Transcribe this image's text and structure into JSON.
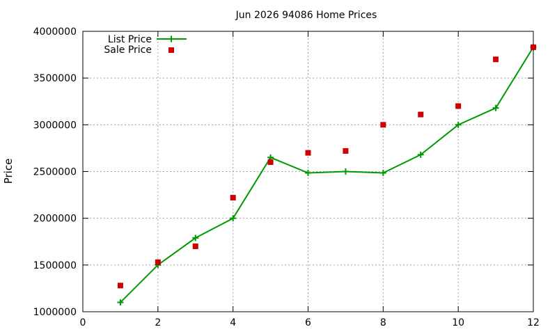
{
  "chart_data": {
    "type": "line",
    "title": "Jun 2026 94086 Home Prices",
    "xlabel": "",
    "ylabel": "Price",
    "xlim": [
      0,
      12
    ],
    "ylim": [
      1000000,
      4000000
    ],
    "xticks": [
      0,
      2,
      4,
      6,
      8,
      10,
      12
    ],
    "yticks": [
      1000000,
      1500000,
      2000000,
      2500000,
      3000000,
      3500000,
      4000000
    ],
    "grid": true,
    "legend_position": "top-left",
    "series": [
      {
        "name": "List Price",
        "style": "line-with-plus-markers",
        "color": "#009900",
        "x": [
          1,
          2,
          3,
          4,
          5,
          6,
          7,
          8,
          9,
          10,
          11,
          12
        ],
        "values": [
          1100000,
          1500000,
          1790000,
          2000000,
          2650000,
          2485000,
          2500000,
          2485000,
          2680000,
          3000000,
          3180000,
          3830000
        ]
      },
      {
        "name": "Sale Price",
        "style": "square-markers",
        "color": "#cc0000",
        "x": [
          1,
          2,
          3,
          4,
          5,
          6,
          7,
          8,
          9,
          10,
          11,
          12
        ],
        "values": [
          1280000,
          1530000,
          1700000,
          2220000,
          2600000,
          2700000,
          2720000,
          3000000,
          3110000,
          3200000,
          3700000,
          3830000
        ]
      }
    ]
  }
}
